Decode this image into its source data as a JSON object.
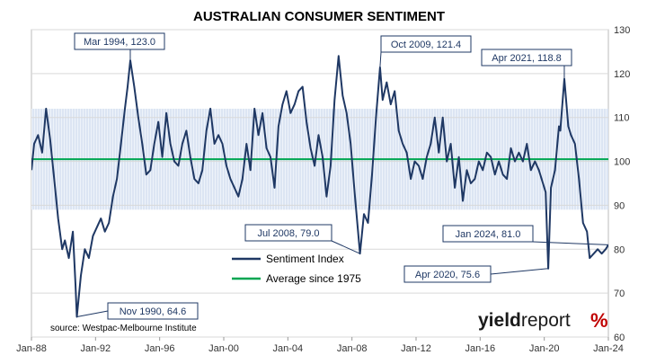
{
  "chart_data": {
    "type": "line",
    "title": "AUSTRALIAN CONSUMER SENTIMENT",
    "xlabel": "",
    "ylabel": "",
    "x_tick_labels": [
      "Jan-88",
      "Jan-92",
      "Jan-96",
      "Jan-00",
      "Jan-04",
      "Jan-08",
      "Jan-12",
      "Jan-16",
      "Jan-20",
      "Jan-24"
    ],
    "y_ticks": [
      60,
      70,
      80,
      90,
      100,
      110,
      120,
      130
    ],
    "ylim": [
      60,
      130
    ],
    "xlim": [
      "1988-01",
      "2024-01"
    ],
    "y_axis_side": "right",
    "shaded_band": {
      "from": 89,
      "to": 112
    },
    "average_value": 100.5,
    "series": [
      {
        "name": "Sentiment Index",
        "color": "#1f3864",
        "points": [
          [
            "1988-01",
            98
          ],
          [
            "1988-03",
            104
          ],
          [
            "1988-06",
            106
          ],
          [
            "1988-09",
            102
          ],
          [
            "1988-12",
            112
          ],
          [
            "1989-03",
            105
          ],
          [
            "1989-06",
            96
          ],
          [
            "1989-09",
            87
          ],
          [
            "1989-12",
            80
          ],
          [
            "1990-02",
            82
          ],
          [
            "1990-05",
            78
          ],
          [
            "1990-08",
            84
          ],
          [
            "1990-10",
            72
          ],
          [
            "1990-11",
            64.6
          ],
          [
            "1991-02",
            74
          ],
          [
            "1991-05",
            80
          ],
          [
            "1991-08",
            78
          ],
          [
            "1991-11",
            83
          ],
          [
            "1992-02",
            85
          ],
          [
            "1992-05",
            87
          ],
          [
            "1992-08",
            84
          ],
          [
            "1992-11",
            86
          ],
          [
            "1993-02",
            92
          ],
          [
            "1993-05",
            96
          ],
          [
            "1993-08",
            104
          ],
          [
            "1993-11",
            112
          ],
          [
            "1994-01",
            117
          ],
          [
            "1994-03",
            123.0
          ],
          [
            "1994-06",
            117
          ],
          [
            "1994-09",
            110
          ],
          [
            "1994-12",
            104
          ],
          [
            "1995-03",
            97
          ],
          [
            "1995-06",
            98
          ],
          [
            "1995-09",
            104
          ],
          [
            "1995-12",
            109
          ],
          [
            "1996-03",
            101
          ],
          [
            "1996-06",
            111
          ],
          [
            "1996-09",
            104
          ],
          [
            "1996-12",
            100
          ],
          [
            "1997-03",
            99
          ],
          [
            "1997-06",
            104
          ],
          [
            "1997-09",
            107
          ],
          [
            "1997-12",
            101
          ],
          [
            "1998-03",
            96
          ],
          [
            "1998-06",
            95
          ],
          [
            "1998-09",
            98
          ],
          [
            "1998-12",
            107
          ],
          [
            "1999-03",
            112
          ],
          [
            "1999-06",
            104
          ],
          [
            "1999-09",
            106
          ],
          [
            "1999-12",
            104
          ],
          [
            "2000-03",
            99
          ],
          [
            "2000-06",
            96
          ],
          [
            "2000-09",
            94
          ],
          [
            "2000-12",
            92
          ],
          [
            "2001-03",
            96
          ],
          [
            "2001-06",
            104
          ],
          [
            "2001-09",
            98
          ],
          [
            "2001-12",
            112
          ],
          [
            "2002-03",
            106
          ],
          [
            "2002-06",
            111
          ],
          [
            "2002-09",
            103
          ],
          [
            "2002-12",
            101
          ],
          [
            "2003-03",
            94
          ],
          [
            "2003-06",
            108
          ],
          [
            "2003-09",
            113
          ],
          [
            "2003-12",
            116
          ],
          [
            "2004-03",
            111
          ],
          [
            "2004-06",
            113
          ],
          [
            "2004-09",
            116
          ],
          [
            "2004-12",
            117
          ],
          [
            "2005-03",
            109
          ],
          [
            "2005-06",
            103
          ],
          [
            "2005-09",
            99
          ],
          [
            "2005-12",
            106
          ],
          [
            "2006-03",
            101
          ],
          [
            "2006-06",
            92
          ],
          [
            "2006-09",
            99
          ],
          [
            "2006-12",
            114
          ],
          [
            "2007-03",
            124
          ],
          [
            "2007-06",
            115
          ],
          [
            "2007-09",
            111
          ],
          [
            "2007-12",
            104
          ],
          [
            "2008-03",
            93
          ],
          [
            "2008-07",
            79.0
          ],
          [
            "2008-10",
            88
          ],
          [
            "2009-01",
            86
          ],
          [
            "2009-04",
            97
          ],
          [
            "2009-07",
            110
          ],
          [
            "2009-10",
            121.4
          ],
          [
            "2009-12",
            114
          ],
          [
            "2010-03",
            118
          ],
          [
            "2010-06",
            113
          ],
          [
            "2010-09",
            116
          ],
          [
            "2010-12",
            107
          ],
          [
            "2011-03",
            104
          ],
          [
            "2011-06",
            102
          ],
          [
            "2011-09",
            96
          ],
          [
            "2011-12",
            100
          ],
          [
            "2012-03",
            99
          ],
          [
            "2012-06",
            96
          ],
          [
            "2012-09",
            101
          ],
          [
            "2012-12",
            104
          ],
          [
            "2013-03",
            110
          ],
          [
            "2013-06",
            102
          ],
          [
            "2013-09",
            110
          ],
          [
            "2013-12",
            100
          ],
          [
            "2014-03",
            104
          ],
          [
            "2014-06",
            94
          ],
          [
            "2014-09",
            101
          ],
          [
            "2014-12",
            91
          ],
          [
            "2015-03",
            98
          ],
          [
            "2015-06",
            95
          ],
          [
            "2015-09",
            96
          ],
          [
            "2015-12",
            100
          ],
          [
            "2016-03",
            98
          ],
          [
            "2016-06",
            102
          ],
          [
            "2016-09",
            101
          ],
          [
            "2016-12",
            97
          ],
          [
            "2017-03",
            100
          ],
          [
            "2017-06",
            97
          ],
          [
            "2017-09",
            96
          ],
          [
            "2017-12",
            103
          ],
          [
            "2018-03",
            100
          ],
          [
            "2018-06",
            102
          ],
          [
            "2018-09",
            100
          ],
          [
            "2018-12",
            104
          ],
          [
            "2019-03",
            98
          ],
          [
            "2019-06",
            100
          ],
          [
            "2019-09",
            98
          ],
          [
            "2019-12",
            95
          ],
          [
            "2020-02",
            93
          ],
          [
            "2020-04",
            75.6
          ],
          [
            "2020-06",
            94
          ],
          [
            "2020-09",
            98
          ],
          [
            "2020-12",
            108
          ],
          [
            "2021-01",
            107
          ],
          [
            "2021-04",
            118.8
          ],
          [
            "2021-07",
            108
          ],
          [
            "2021-09",
            106
          ],
          [
            "2021-12",
            104
          ],
          [
            "2022-03",
            96
          ],
          [
            "2022-06",
            86
          ],
          [
            "2022-09",
            84
          ],
          [
            "2022-11",
            78
          ],
          [
            "2023-02",
            79
          ],
          [
            "2023-05",
            80
          ],
          [
            "2023-08",
            79
          ],
          [
            "2023-11",
            80
          ],
          [
            "2024-01",
            81.0
          ]
        ]
      },
      {
        "name": "Average since 1975",
        "color": "#00a651"
      }
    ],
    "annotations": [
      {
        "text": "Mar 1994, 123.0",
        "x": "1994-03",
        "y": 123.0
      },
      {
        "text": "Oct 2009, 121.4",
        "x": "2009-10",
        "y": 121.4
      },
      {
        "text": "Apr 2021, 118.8",
        "x": "2021-04",
        "y": 118.8
      },
      {
        "text": "Jul 2008, 79.0",
        "x": "2008-07",
        "y": 79.0
      },
      {
        "text": "Jan 2024, 81.0",
        "x": "2024-01",
        "y": 81.0
      },
      {
        "text": "Apr 2020, 75.6",
        "x": "2020-04",
        "y": 75.6
      },
      {
        "text": "Nov 1990, 64.6",
        "x": "1990-11",
        "y": 64.6
      }
    ],
    "legend_position": "bottom-center",
    "source": "source: Westpac-Melbourne Institute"
  },
  "brand": {
    "text_a": "yield",
    "text_b": "report",
    "symbol": "%",
    "color_dark": "#1a1a1a",
    "color_accent": "#c00000"
  }
}
